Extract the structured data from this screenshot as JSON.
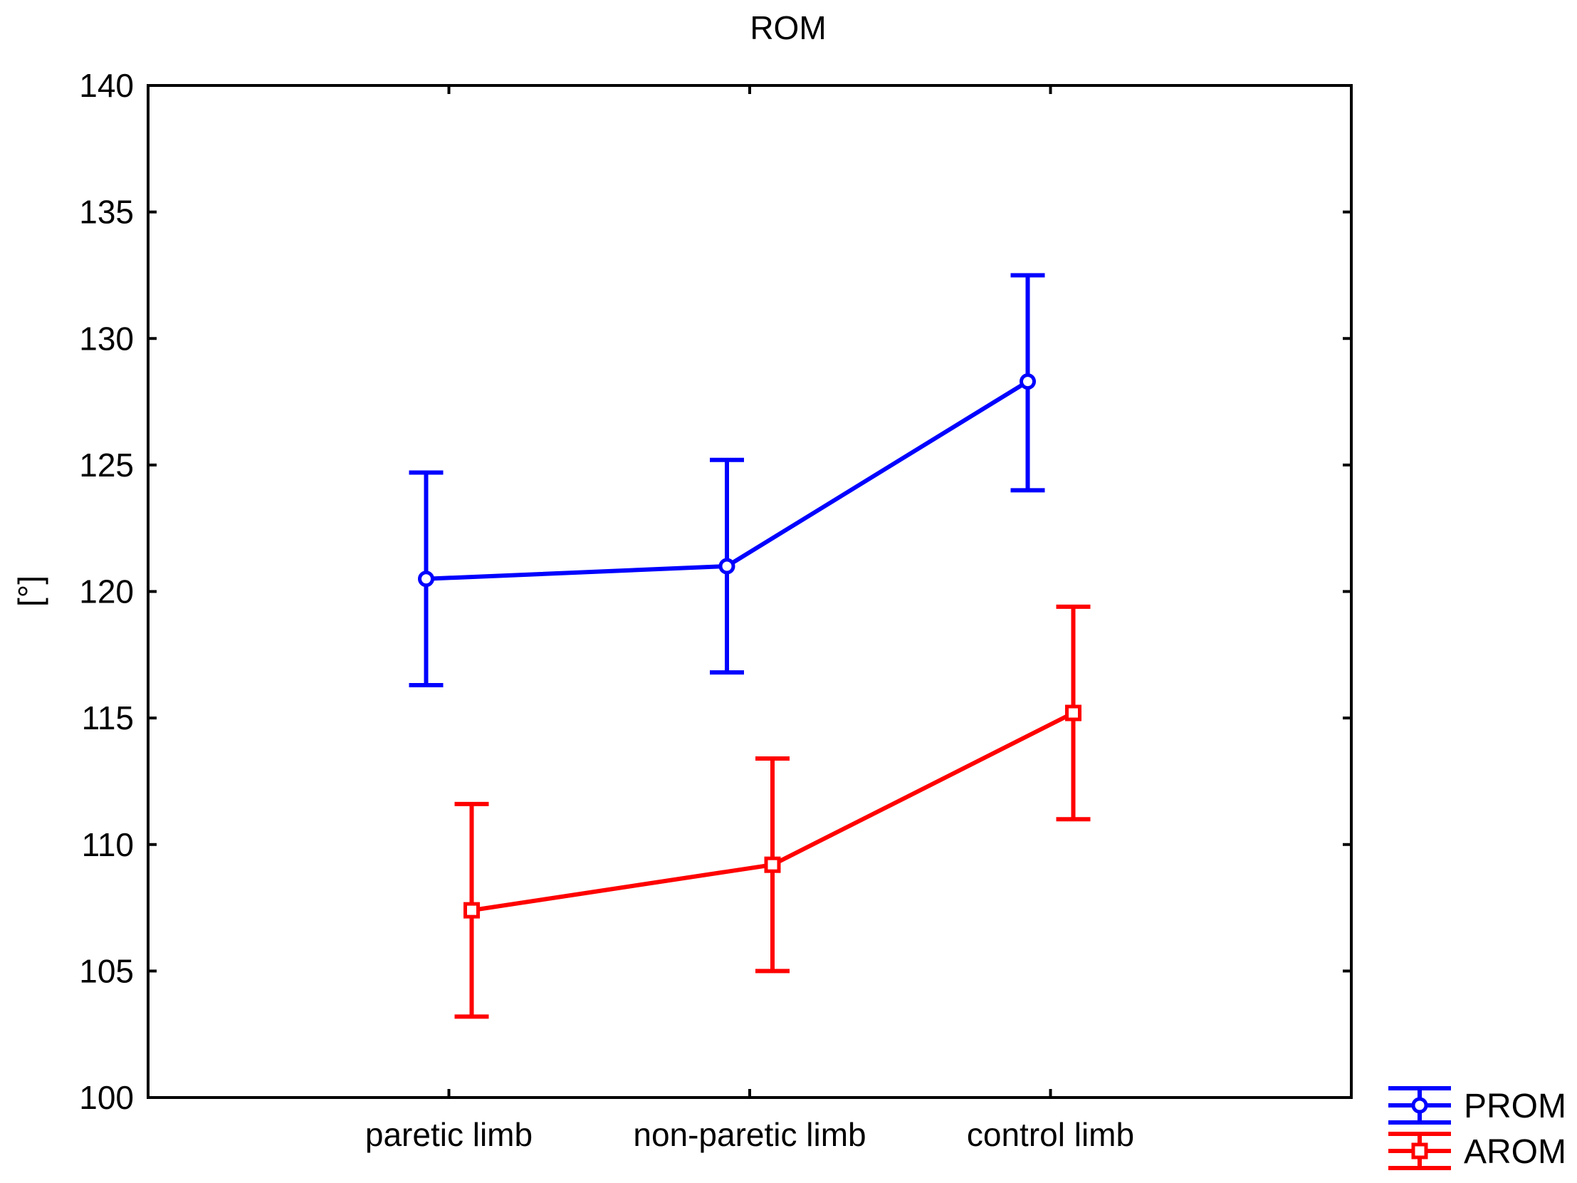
{
  "chart_data": {
    "type": "line",
    "title": "ROM",
    "xlabel": "",
    "ylabel": "[°]",
    "categories": [
      "paretic limb",
      "non-paretic limb",
      "control limb"
    ],
    "ylim": [
      100,
      140
    ],
    "yticks": [
      100,
      105,
      110,
      115,
      120,
      125,
      130,
      135,
      140
    ],
    "grid": false,
    "legend_position": "bottom-right outside",
    "error_bars": true,
    "series": [
      {
        "name": "PROM",
        "color": "#0000ff",
        "marker": "circle",
        "values": [
          120.5,
          121.0,
          128.3
        ],
        "lower": [
          116.3,
          116.8,
          124.0
        ],
        "upper": [
          124.7,
          125.2,
          132.5
        ]
      },
      {
        "name": "AROM",
        "color": "#ff0000",
        "marker": "square",
        "values": [
          107.4,
          109.2,
          115.2
        ],
        "lower": [
          103.2,
          105.0,
          111.0
        ],
        "upper": [
          111.6,
          113.4,
          119.4
        ]
      }
    ]
  }
}
